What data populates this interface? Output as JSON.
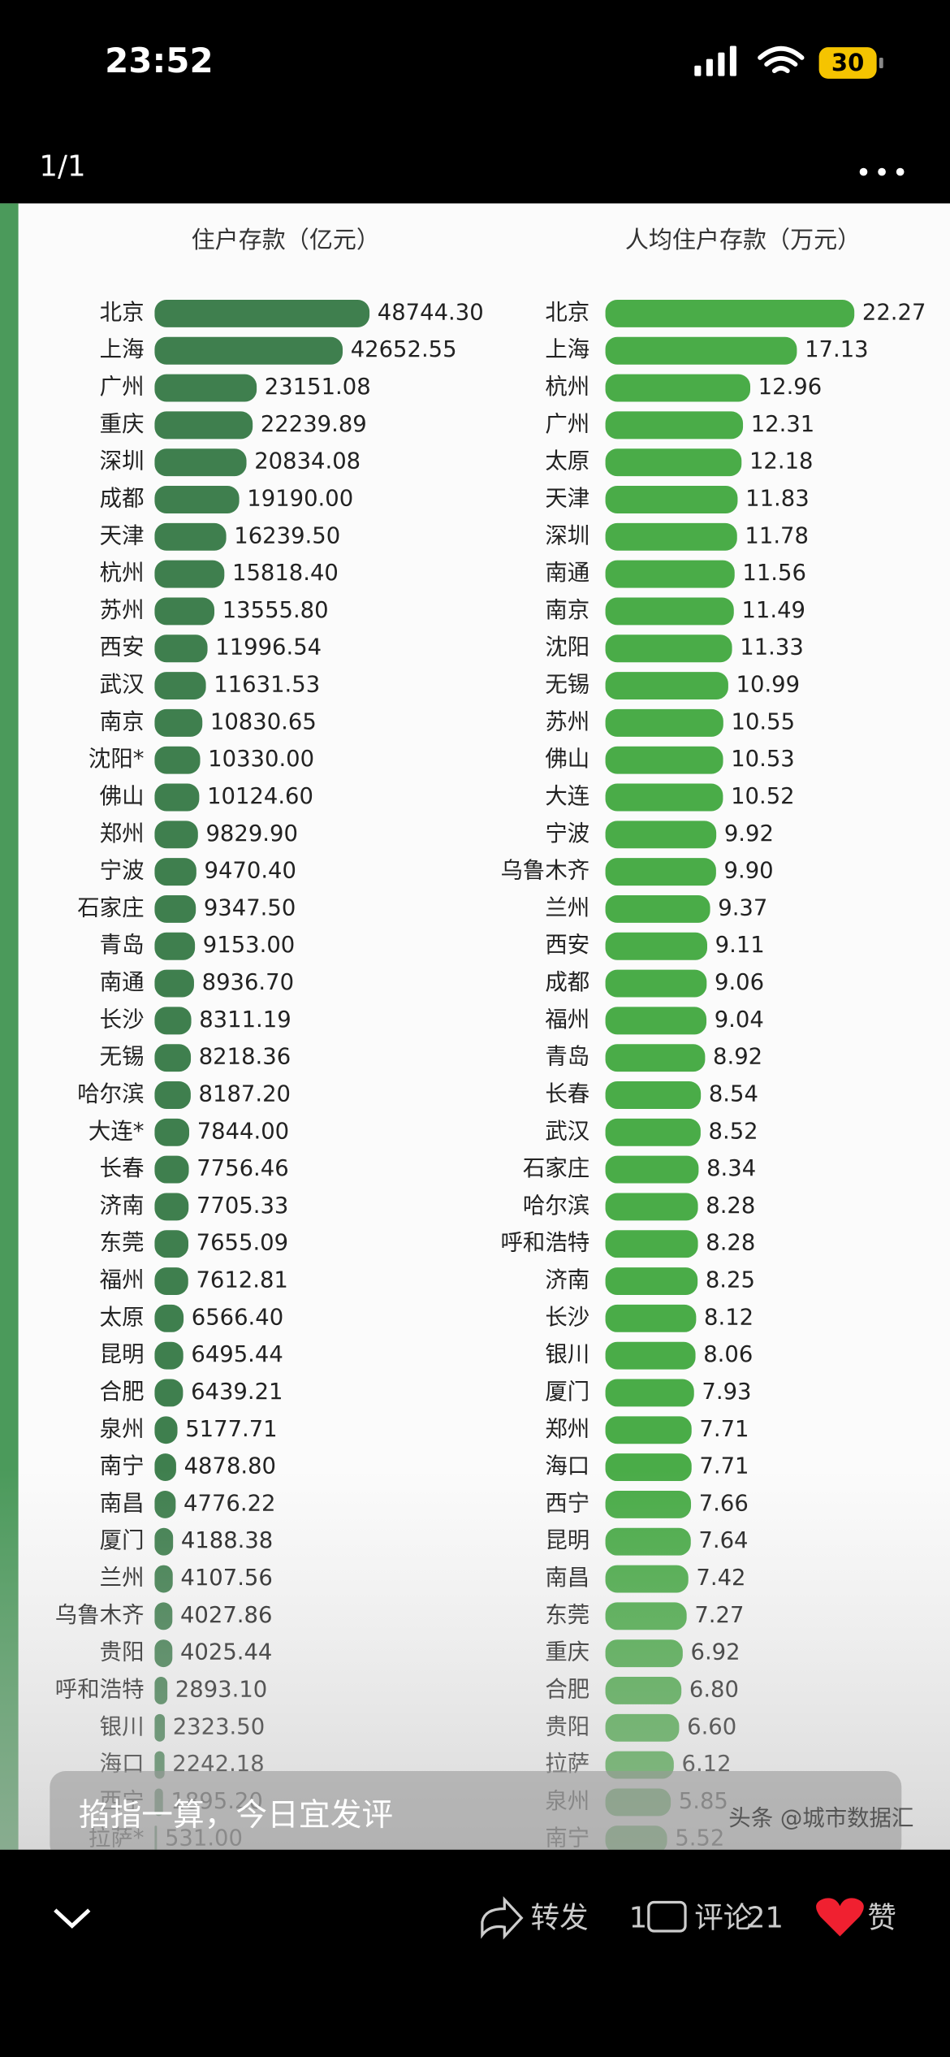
{
  "status_bar": {
    "time": "23:52",
    "battery": "30"
  },
  "header": {
    "page_indicator": "1/1"
  },
  "chart_data": [
    {
      "type": "bar",
      "title": "住户存款（亿元）",
      "color": "#3f7f4e",
      "categories": [
        "北京",
        "上海",
        "广州",
        "重庆",
        "深圳",
        "成都",
        "天津",
        "杭州",
        "苏州",
        "西安",
        "武汉",
        "南京",
        "沈阳*",
        "佛山",
        "郑州",
        "宁波",
        "石家庄",
        "青岛",
        "南通",
        "长沙",
        "无锡",
        "哈尔滨",
        "大连*",
        "长春",
        "济南",
        "东莞",
        "福州",
        "太原",
        "昆明",
        "合肥",
        "泉州",
        "南宁",
        "南昌",
        "厦门",
        "兰州",
        "乌鲁木齐",
        "贵阳",
        "呼和浩特",
        "银川",
        "海口",
        "西宁",
        "拉萨*"
      ],
      "values": [
        48744.3,
        42652.55,
        23151.08,
        22239.89,
        20834.08,
        19190,
        16239.5,
        15818.4,
        13555.8,
        11996.54,
        11631.53,
        10830.65,
        10330,
        10124.6,
        9829.9,
        9470.4,
        9347.5,
        9153,
        8936.7,
        8311.19,
        8218.36,
        8187.2,
        7844,
        7756.46,
        7705.33,
        7655.09,
        7612.81,
        6566.4,
        6495.44,
        6439.21,
        5177.71,
        4878.8,
        4776.22,
        4188.38,
        4107.56,
        4027.86,
        4025.44,
        2893.1,
        2323.5,
        2242.18,
        1895.2,
        531
      ],
      "value_labels": [
        "48744.30",
        "42652.55",
        "23151.08",
        "22239.89",
        "20834.08",
        "19190.00",
        "16239.50",
        "15818.40",
        "13555.80",
        "11996.54",
        "11631.53",
        "10830.65",
        "10330.00",
        "10124.60",
        "9829.90",
        "9470.40",
        "9347.50",
        "9153.00",
        "8936.70",
        "8311.19",
        "8218.36",
        "8187.20",
        "7844.00",
        "7756.46",
        "7705.33",
        "7655.09",
        "7612.81",
        "6566.40",
        "6495.44",
        "6439.21",
        "5177.71",
        "4878.80",
        "4776.22",
        "4188.38",
        "4107.56",
        "4027.86",
        "4025.44",
        "2893.10",
        "2323.50",
        "2242.18",
        "1895.20",
        "531.00"
      ]
    },
    {
      "type": "bar",
      "title": "人均住户存款（万元）",
      "color": "#4aac48",
      "categories": [
        "北京",
        "上海",
        "杭州",
        "广州",
        "太原",
        "天津",
        "深圳",
        "南通",
        "南京",
        "沈阳",
        "无锡",
        "苏州",
        "佛山",
        "大连",
        "宁波",
        "乌鲁木齐",
        "兰州",
        "西安",
        "成都",
        "福州",
        "青岛",
        "长春",
        "武汉",
        "石家庄",
        "哈尔滨",
        "呼和浩特",
        "济南",
        "长沙",
        "银川",
        "厦门",
        "郑州",
        "海口",
        "西宁",
        "昆明",
        "南昌",
        "东莞",
        "重庆",
        "合肥",
        "贵阳",
        "拉萨",
        "泉州",
        "南宁"
      ],
      "values": [
        22.27,
        17.13,
        12.96,
        12.31,
        12.18,
        11.83,
        11.78,
        11.56,
        11.49,
        11.33,
        10.99,
        10.55,
        10.53,
        10.52,
        9.92,
        9.9,
        9.37,
        9.11,
        9.06,
        9.04,
        8.92,
        8.54,
        8.52,
        8.34,
        8.28,
        8.28,
        8.25,
        8.12,
        8.06,
        7.93,
        7.71,
        7.71,
        7.66,
        7.64,
        7.42,
        7.27,
        6.92,
        6.8,
        6.6,
        6.12,
        5.85,
        5.52
      ],
      "value_labels": [
        "22.27",
        "17.13",
        "12.96",
        "12.31",
        "12.18",
        "11.83",
        "11.78",
        "11.56",
        "11.49",
        "11.33",
        "10.99",
        "10.55",
        "10.53",
        "10.52",
        "9.92",
        "9.90",
        "9.37",
        "9.11",
        "9.06",
        "9.04",
        "8.92",
        "8.54",
        "8.52",
        "8.34",
        "8.28",
        "8.28",
        "8.25",
        "8.12",
        "8.06",
        "7.93",
        "7.71",
        "7.71",
        "7.66",
        "7.64",
        "7.42",
        "7.27",
        "6.92",
        "6.80",
        "6.60",
        "6.12",
        "5.85",
        "5.52"
      ]
    }
  ],
  "comment_box": {
    "placeholder": "掐指一算，今日宜发评"
  },
  "watermark": "头条 @城市数据汇",
  "actions": {
    "share_label": "转发",
    "share_count": 1,
    "comment_label": "评论",
    "comment_count": 21,
    "like_label": "赞"
  }
}
